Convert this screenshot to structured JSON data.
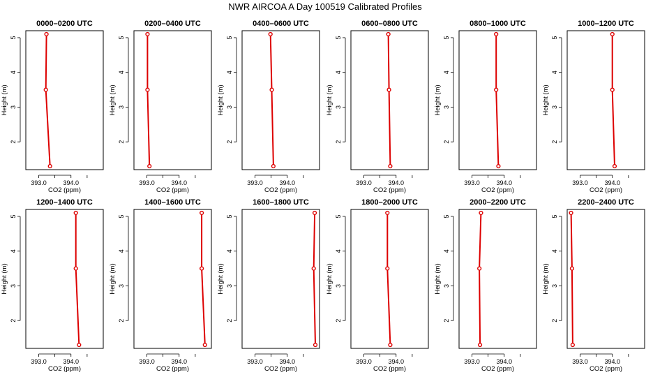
{
  "figure_title": "NWR AIRCOA A  Day 100519  Calibrated Profiles",
  "chart_data": {
    "type": "line",
    "xlabel": "CO2 (ppm)",
    "ylabel": "Height (m)",
    "xlim": [
      392.6,
      395.0
    ],
    "ylim": [
      1.2,
      5.2
    ],
    "x_ticks": [
      393.0,
      394.0
    ],
    "x_tick_labels": [
      "393.0",
      "394.0"
    ],
    "y_ticks": [
      2,
      3,
      4,
      5
    ],
    "y_tick_labels": [
      "2",
      "3",
      "4",
      "5"
    ],
    "line_color": "#dd0000",
    "panels": [
      {
        "title": "0000–0200 UTC",
        "points": [
          {
            "co2": 393.35,
            "height": 1.3
          },
          {
            "co2": 393.22,
            "height": 3.5
          },
          {
            "co2": 393.24,
            "height": 5.1
          }
        ]
      },
      {
        "title": "0200–0400 UTC",
        "points": [
          {
            "co2": 393.08,
            "height": 1.3
          },
          {
            "co2": 393.02,
            "height": 3.5
          },
          {
            "co2": 393.02,
            "height": 5.1
          }
        ]
      },
      {
        "title": "0400–0600 UTC",
        "points": [
          {
            "co2": 393.57,
            "height": 1.3
          },
          {
            "co2": 393.52,
            "height": 3.5
          },
          {
            "co2": 393.48,
            "height": 5.1
          }
        ]
      },
      {
        "title": "0600–0800 UTC",
        "points": [
          {
            "co2": 393.82,
            "height": 1.3
          },
          {
            "co2": 393.78,
            "height": 3.5
          },
          {
            "co2": 393.76,
            "height": 5.1
          }
        ]
      },
      {
        "title": "0800–1000 UTC",
        "points": [
          {
            "co2": 393.82,
            "height": 1.3
          },
          {
            "co2": 393.75,
            "height": 3.5
          },
          {
            "co2": 393.75,
            "height": 5.1
          }
        ]
      },
      {
        "title": "1000–1200 UTC",
        "points": [
          {
            "co2": 394.07,
            "height": 1.3
          },
          {
            "co2": 394.0,
            "height": 3.5
          },
          {
            "co2": 394.0,
            "height": 5.1
          }
        ]
      },
      {
        "title": "1200–1400 UTC",
        "points": [
          {
            "co2": 394.25,
            "height": 1.3
          },
          {
            "co2": 394.15,
            "height": 3.5
          },
          {
            "co2": 394.15,
            "height": 5.1
          }
        ]
      },
      {
        "title": "1400–1600 UTC",
        "points": [
          {
            "co2": 394.8,
            "height": 1.3
          },
          {
            "co2": 394.7,
            "height": 3.5
          },
          {
            "co2": 394.7,
            "height": 5.1
          }
        ]
      },
      {
        "title": "1600–1800 UTC",
        "points": [
          {
            "co2": 394.87,
            "height": 1.3
          },
          {
            "co2": 394.82,
            "height": 3.5
          },
          {
            "co2": 394.85,
            "height": 5.1
          }
        ]
      },
      {
        "title": "1800–2000 UTC",
        "points": [
          {
            "co2": 393.82,
            "height": 1.3
          },
          {
            "co2": 393.73,
            "height": 3.5
          },
          {
            "co2": 393.73,
            "height": 5.1
          }
        ]
      },
      {
        "title": "2000–2200 UTC",
        "points": [
          {
            "co2": 393.25,
            "height": 1.3
          },
          {
            "co2": 393.23,
            "height": 3.5
          },
          {
            "co2": 393.28,
            "height": 5.1
          }
        ]
      },
      {
        "title": "2200–2400 UTC",
        "points": [
          {
            "co2": 392.77,
            "height": 1.3
          },
          {
            "co2": 392.75,
            "height": 3.5
          },
          {
            "co2": 392.72,
            "height": 5.1
          }
        ]
      }
    ]
  }
}
